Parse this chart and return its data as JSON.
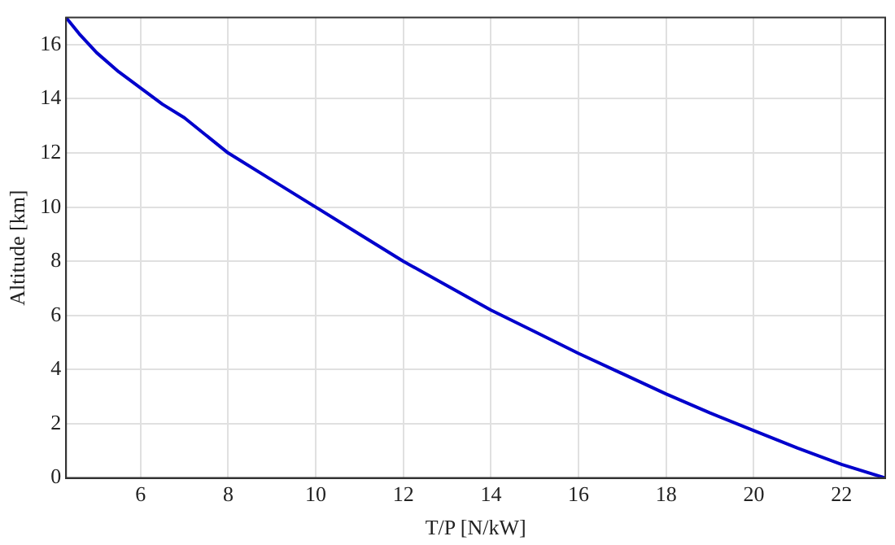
{
  "chart_data": {
    "type": "line",
    "xlabel": "T/P [N/kW]",
    "ylabel": "Altitude [km]",
    "x": [
      4.3,
      4.6,
      5,
      5.5,
      6,
      6.5,
      7,
      8,
      9,
      10,
      11,
      12,
      13,
      14,
      15,
      16,
      17,
      18,
      19,
      20,
      21,
      22,
      23
    ],
    "series": [
      {
        "color": "#0000cc",
        "values": [
          17,
          16.4,
          15.7,
          15,
          14.4,
          13.8,
          13.3,
          12.0,
          11.0,
          10.0,
          9.0,
          8.0,
          7.1,
          6.2,
          5.4,
          4.6,
          3.85,
          3.1,
          2.4,
          1.75,
          1.1,
          0.5,
          0
        ]
      }
    ],
    "xlim": [
      4.3,
      23
    ],
    "ylim": [
      0,
      17
    ],
    "xticks": [
      6,
      8,
      10,
      12,
      14,
      16,
      18,
      20,
      22
    ],
    "yticks": [
      0,
      2,
      4,
      6,
      8,
      10,
      12,
      14,
      16
    ],
    "grid": true,
    "legend": false,
    "marker": "none",
    "line_style": "solid"
  }
}
